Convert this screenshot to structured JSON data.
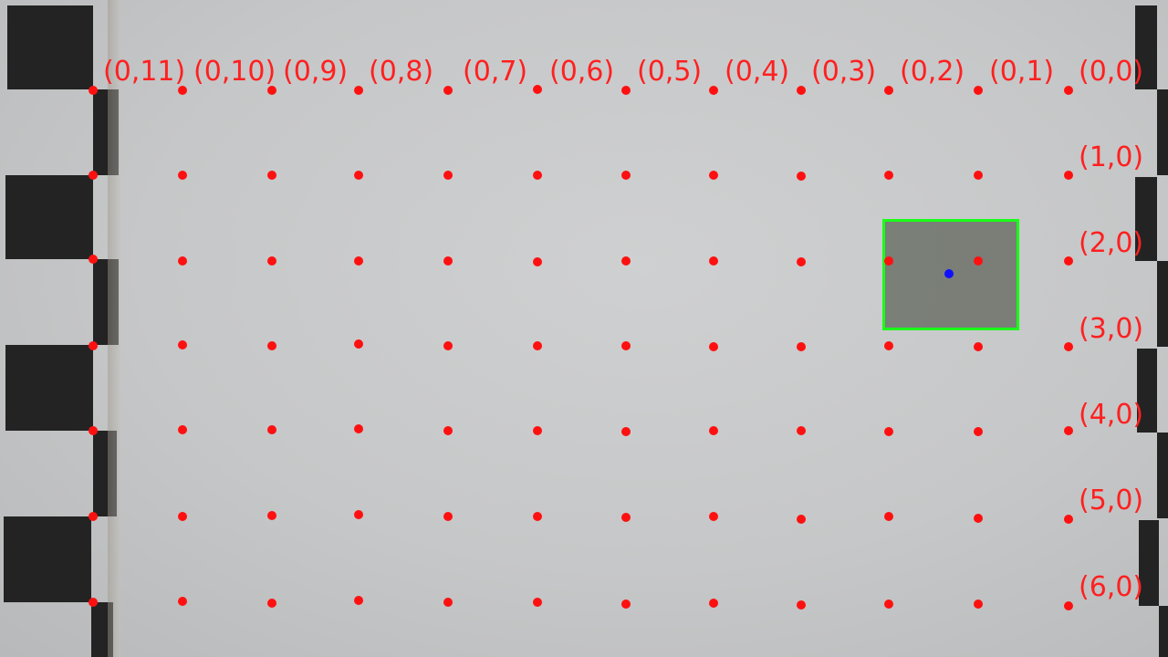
{
  "image": {
    "background_color": "#c9cacb",
    "dot_color": "#ff1010",
    "label_color": "#ff2020",
    "box_color": "#19ff19",
    "center_dot_color": "#1010ff"
  },
  "top_labels": [
    "(0,11)",
    "(0,10)",
    "(0,9)",
    "(0,8)",
    "(0,7)",
    "(0,6)",
    "(0,5)",
    "(0,4)",
    "(0,3)",
    "(0,2)",
    "(0,1)",
    "(0,0)"
  ],
  "side_labels": [
    "(1,0)",
    "(2,0)",
    "(3,0)",
    "(4,0)",
    "(5,0)",
    "(6,0)"
  ],
  "grid": {
    "rows": 7,
    "cols": 12
  }
}
